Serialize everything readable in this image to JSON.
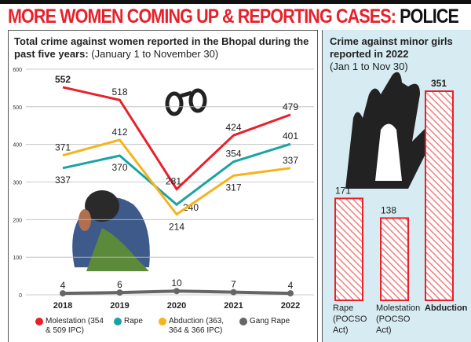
{
  "headline": {
    "red": "MORE WOMEN COMING UP & REPORTING CASES:",
    "black": "POLICE"
  },
  "left": {
    "title_bold": "Total crime against women reported in the Bhopal during the past five years:",
    "title_normal": "(January 1 to November 30)"
  },
  "right": {
    "title_bold": "Crime against minor girls reported in 2022",
    "title_normal": "(Jan 1 to Nov 30)"
  },
  "chart_data": [
    {
      "type": "line",
      "categories": [
        "2018",
        "2019",
        "2020",
        "2021",
        "2022"
      ],
      "ylim": [
        0,
        600
      ],
      "yticks": [
        "0",
        "100",
        "200",
        "300",
        "400",
        "500",
        "600"
      ],
      "grid": true,
      "series": [
        {
          "name": "Molestation (354 & 509 IPC)",
          "color": "#e8202a",
          "values": [
            552,
            518,
            281,
            424,
            479
          ]
        },
        {
          "name": "Rape",
          "color": "#1aa3a3",
          "values": [
            337,
            370,
            240,
            354,
            401
          ]
        },
        {
          "name": "Abduction (363, 364 & 366 IPC)",
          "color": "#f7b31a",
          "values": [
            371,
            412,
            214,
            317,
            337
          ]
        },
        {
          "name": "Gang Rape",
          "color": "#666666",
          "values": [
            4,
            6,
            10,
            7,
            4
          ]
        }
      ],
      "legend": "bottom"
    },
    {
      "type": "bar",
      "categories": [
        "Rape (POCSO Act)",
        "Molestation (POCSO Act)",
        "Abduction"
      ],
      "values": [
        171,
        138,
        351
      ],
      "color": "#e8202a"
    }
  ]
}
